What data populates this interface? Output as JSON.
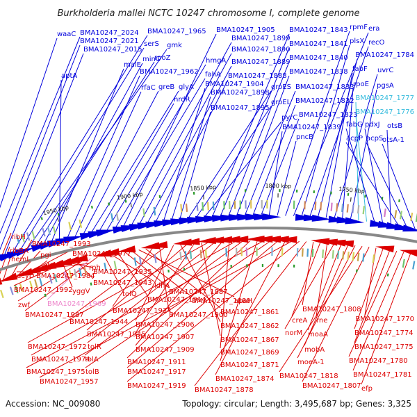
{
  "title": "Burkholderia mallei NCTC 10247 chromosome I, complete genome",
  "accession": "Accession: NC_009080",
  "summary": "Topology: circular; Length: 3,495,687 bp; Genes: 3,325",
  "colors": {
    "forward": "#0000dd",
    "reverse": "#dd0000",
    "highlight_fwd": "#33bbdd",
    "highlight_rev": "#ee88cc",
    "backbone": "#888888"
  },
  "ticks": [
    {
      "label": "2000 kbp"
    },
    {
      "label": "1950 kbp"
    },
    {
      "label": "1900 kbp"
    },
    {
      "label": "1850 kbp"
    },
    {
      "label": "1800 kbp"
    },
    {
      "label": "1750 kbp"
    }
  ],
  "top_labels": [
    {
      "text": "waaC"
    },
    {
      "text": "BMA10247_2024"
    },
    {
      "text": "BMA10247_2021"
    },
    {
      "text": "BMA10247_2015"
    },
    {
      "text": "BMA10247_1965"
    },
    {
      "text": "serS"
    },
    {
      "text": "gmk"
    },
    {
      "text": "rpoZ"
    },
    {
      "text": "minC"
    },
    {
      "text": "malE"
    },
    {
      "text": "aptA"
    },
    {
      "text": "BMA10247_1962"
    },
    {
      "text": "rfaC"
    },
    {
      "text": "greB"
    },
    {
      "text": "glyA"
    },
    {
      "text": "nrdR"
    },
    {
      "text": "hmgA"
    },
    {
      "text": "fahA"
    },
    {
      "text": "BMA10247_1905"
    },
    {
      "text": "BMA10247_1899"
    },
    {
      "text": "BMA10247_1890"
    },
    {
      "text": "BMA10247_1889"
    },
    {
      "text": "BMA10247_1888"
    },
    {
      "text": "BMA10247_1904"
    },
    {
      "text": "BMA10247_1898"
    },
    {
      "text": "BMA10247_1895"
    },
    {
      "text": "groES"
    },
    {
      "text": "groEL"
    },
    {
      "text": "pyrC"
    },
    {
      "text": "BMA10247_1843"
    },
    {
      "text": "BMA10247_1841"
    },
    {
      "text": "BMA10247_1840"
    },
    {
      "text": "BMA10247_1838"
    },
    {
      "text": "BMA10247_1833"
    },
    {
      "text": "BMA10247_1832"
    },
    {
      "text": "BMA10247_1823"
    },
    {
      "text": "BMA10247_1839"
    },
    {
      "text": "pncB"
    },
    {
      "text": "rpmF"
    },
    {
      "text": "era"
    },
    {
      "text": "plsX"
    },
    {
      "text": "recO"
    },
    {
      "text": "BMA10247_1784"
    },
    {
      "text": "fabF"
    },
    {
      "text": "uvrC"
    },
    {
      "text": "rpoE"
    },
    {
      "text": "pgsA"
    },
    {
      "text": "BMA10247_1777"
    },
    {
      "text": "BMA10247_1776"
    },
    {
      "text": "fabG"
    },
    {
      "text": "pdxJ"
    },
    {
      "text": "otsB"
    },
    {
      "text": "acpP"
    },
    {
      "text": "acpS"
    },
    {
      "text": "otsA-1"
    }
  ],
  "bottom_labels": [
    {
      "text": "ribH"
    },
    {
      "text": "ribBA"
    },
    {
      "text": "hemL"
    },
    {
      "text": "BMA10247_1993"
    },
    {
      "text": "pgi"
    },
    {
      "text": "BMA10247_1977"
    },
    {
      "text": "trxB"
    },
    {
      "text": "dcyD"
    },
    {
      "text": "BMA10247_1984"
    },
    {
      "text": "rph"
    },
    {
      "text": "BMA10247_1992"
    },
    {
      "text": "yggV"
    },
    {
      "text": "BMA10247_1935"
    },
    {
      "text": "BMA10247_1943"
    },
    {
      "text": "zwf"
    },
    {
      "text": "BMA10247_1969"
    },
    {
      "text": "BMA10247_1987"
    },
    {
      "text": "tolQ"
    },
    {
      "text": "ldhA"
    },
    {
      "text": "BMA10247_1914"
    },
    {
      "text": "BMA10247_1887"
    },
    {
      "text": "BMA10247_1880"
    },
    {
      "text": "apaH"
    },
    {
      "text": "BMA10247_1861"
    },
    {
      "text": "BMA10247_1934"
    },
    {
      "text": "BMA10247_1900"
    },
    {
      "text": "BMA10247_1944"
    },
    {
      "text": "BMA10247_1906"
    },
    {
      "text": "BMA10247_1862"
    },
    {
      "text": "BMA10247_1945"
    },
    {
      "text": "BMA10247_1907"
    },
    {
      "text": "BMA10247_1867"
    },
    {
      "text": "BMA10247_1972"
    },
    {
      "text": "tolR"
    },
    {
      "text": "BMA10247_1909"
    },
    {
      "text": "BMA10247_1869"
    },
    {
      "text": "BMA10247_1974"
    },
    {
      "text": "tolA"
    },
    {
      "text": "BMA10247_1911"
    },
    {
      "text": "BMA10247_1871"
    },
    {
      "text": "BMA10247_1975"
    },
    {
      "text": "tolB"
    },
    {
      "text": "BMA10247_1917"
    },
    {
      "text": "BMA10247_1874"
    },
    {
      "text": "BMA10247_1957"
    },
    {
      "text": "BMA10247_1919"
    },
    {
      "text": "BMA10247_1878"
    },
    {
      "text": "BMA10247_1808"
    },
    {
      "text": "creA"
    },
    {
      "text": "rne"
    },
    {
      "text": "norM"
    },
    {
      "text": "moaA"
    },
    {
      "text": "mobA"
    },
    {
      "text": "moeA-1"
    },
    {
      "text": "BMA10247_1818"
    },
    {
      "text": "BMA10247_1807"
    },
    {
      "text": "BMA10247_1770"
    },
    {
      "text": "BMA10247_1774"
    },
    {
      "text": "BMA10247_1775"
    },
    {
      "text": "BMA10247_1780"
    },
    {
      "text": "BMA10247_1781"
    },
    {
      "text": "efp"
    }
  ]
}
